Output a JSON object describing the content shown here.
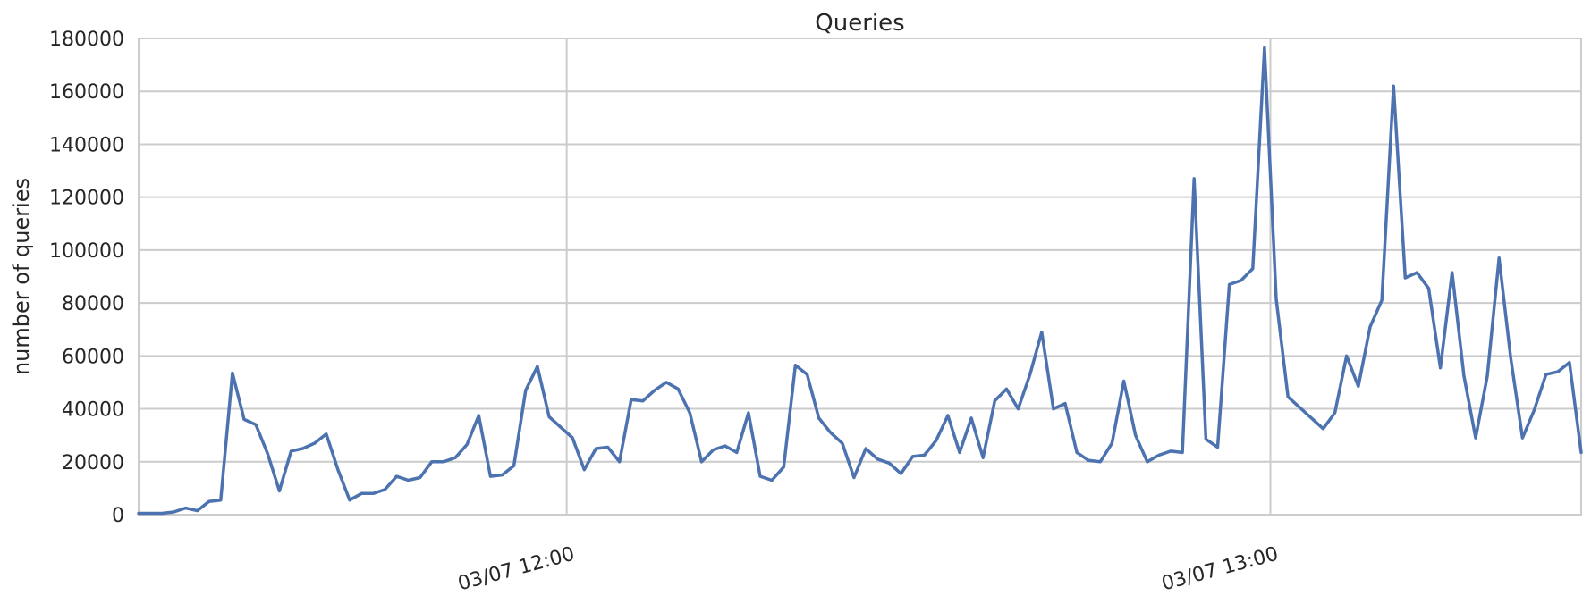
{
  "chart_data": {
    "type": "line",
    "title": "Queries",
    "xlabel": "",
    "ylabel": "number of queries",
    "ylim": [
      0,
      180000
    ],
    "yticks": [
      0,
      20000,
      40000,
      60000,
      80000,
      100000,
      120000,
      140000,
      160000,
      180000
    ],
    "ytick_labels": [
      "0",
      "20000",
      "40000",
      "60000",
      "80000",
      "100000",
      "120000",
      "140000",
      "160000",
      "180000"
    ],
    "xlim_minutes": [
      0,
      123
    ],
    "xticks": [
      {
        "minute": 36.5,
        "label": "03/07 12:00"
      },
      {
        "minute": 96.5,
        "label": "03/07 13:00"
      }
    ],
    "grid": true,
    "series": [
      {
        "color": "#4c72b0",
        "values": [
          500,
          500,
          500,
          1000,
          2500,
          1500,
          5000,
          5500,
          53500,
          36000,
          34000,
          23000,
          9000,
          24000,
          25000,
          27000,
          30500,
          17000,
          5500,
          8000,
          8000,
          9500,
          14500,
          13000,
          14000,
          20000,
          20000,
          21500,
          26500,
          37500,
          14500,
          15000,
          18500,
          47000,
          56000,
          37000,
          33000,
          29000,
          17000,
          25000,
          25500,
          20000,
          43500,
          43000,
          47000,
          50000,
          47500,
          38500,
          20000,
          24500,
          26000,
          23500,
          38500,
          14500,
          13000,
          18000,
          56500,
          53000,
          36500,
          31000,
          27000,
          14000,
          25000,
          21000,
          19500,
          15500,
          22000,
          22500,
          28000,
          37500,
          23500,
          36500,
          21500,
          43000,
          47500,
          40000,
          53000,
          69000,
          40000,
          42000,
          23500,
          20500,
          20000,
          27000,
          50500,
          30000,
          20000,
          22500,
          24000,
          23500,
          127000,
          28500,
          25500,
          87000,
          88500,
          93000,
          176500,
          81500,
          44500,
          40500,
          36500,
          32500,
          38500,
          60000,
          48500,
          71000,
          81000,
          162000,
          89500,
          91500,
          85500,
          55500,
          91500,
          52500,
          29000,
          52500,
          97000,
          59000,
          29000,
          39500,
          53000,
          54000,
          57500,
          23500
        ]
      }
    ]
  }
}
